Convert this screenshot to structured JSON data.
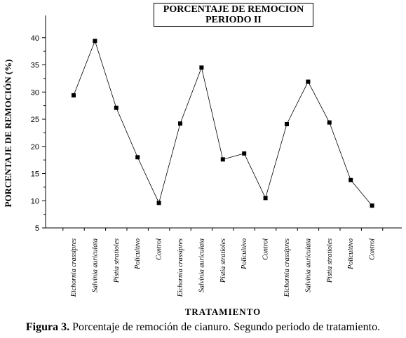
{
  "figure": {
    "caption_label": "Figura 3.",
    "caption_text": " Porcentaje de remoción de cianuro. Segundo periodo de tratamiento."
  },
  "chart_data": {
    "type": "line",
    "title_line1": "PORCENTAJE DE REMOCION",
    "title_line2": "PERIODO II",
    "xlabel": "TRATAMIENTO",
    "ylabel": "PORCENTAJE DE REMOCIÓN    (%)",
    "ylim": [
      5,
      42
    ],
    "yticks": [
      5,
      10,
      15,
      20,
      25,
      30,
      35,
      40
    ],
    "grid": false,
    "legend": "none",
    "marker": "square",
    "line_color": "#000000",
    "categories": [
      "Eichornia crassipres",
      "Salvinia auriculata",
      "Pistia stratioles",
      "Policultivo",
      "Control",
      "Eichornia crassipres",
      "Salvinia auriculata",
      "Pistia stratioles",
      "Policultivo",
      "Control",
      "Eichornia crassipres",
      "Salvinia auriculata",
      "Pistia stratioles",
      "Policultivo",
      "Control"
    ],
    "values": [
      29.4,
      39.4,
      27.1,
      18.0,
      9.6,
      24.2,
      34.5,
      17.6,
      18.7,
      10.5,
      24.1,
      31.9,
      24.4,
      13.8,
      9.1
    ]
  }
}
